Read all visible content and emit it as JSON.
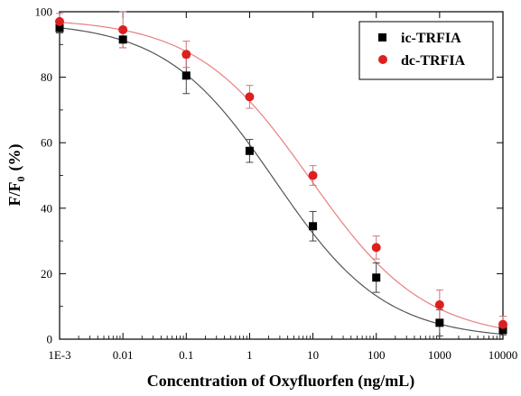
{
  "chart_data": {
    "type": "scatter",
    "xlabel": "Concentration of Oxyfluorfen (ng/mL)",
    "ylabel_main": "F/F",
    "ylabel_sub": "0",
    "ylabel_unit": "(%)",
    "xscale": "log",
    "xlim": [
      0.001,
      10000
    ],
    "ylim": [
      0,
      100
    ],
    "x_ticks": [
      0.001,
      0.01,
      0.1,
      1,
      10,
      100,
      1000,
      10000
    ],
    "x_tick_labels": [
      "1E-3",
      "0.01",
      "0.1",
      "1",
      "10",
      "100",
      "1000",
      "10000"
    ],
    "y_ticks": [
      0,
      20,
      40,
      60,
      80,
      100
    ],
    "y_tick_labels": [
      "0",
      "20",
      "40",
      "60",
      "80",
      "100"
    ],
    "grid": false,
    "legend_position": "top-right",
    "series": [
      {
        "name": "ic-TRFIA",
        "marker": "square",
        "marker_color": "#000000",
        "line_color": "#555555",
        "x": [
          0.001,
          0.01,
          0.1,
          1,
          10,
          100,
          1000,
          10000
        ],
        "y": [
          95,
          91.5,
          80.5,
          57.5,
          34.5,
          18.8,
          5,
          2.8
        ],
        "err": [
          1.5,
          2.5,
          5.5,
          3.5,
          4.5,
          4.5,
          4,
          1.5
        ],
        "fit": {
          "top": 97,
          "bottom": 0,
          "ic50": 2.5,
          "hill": 0.5
        }
      },
      {
        "name": "dc-TRFIA",
        "marker": "circle",
        "marker_color": "#dd1f1f",
        "line_color": "#e8807f",
        "x": [
          0.001,
          0.01,
          0.1,
          1,
          10,
          100,
          1000,
          10000
        ],
        "y": [
          97,
          94.5,
          87,
          74,
          50,
          28,
          10.5,
          4.5
        ],
        "err": [
          2.5,
          5.5,
          4,
          3.5,
          3,
          3.5,
          4.5,
          2.5
        ],
        "fit": {
          "top": 98,
          "bottom": 0,
          "ic50": 9,
          "hill": 0.48
        }
      }
    ]
  }
}
